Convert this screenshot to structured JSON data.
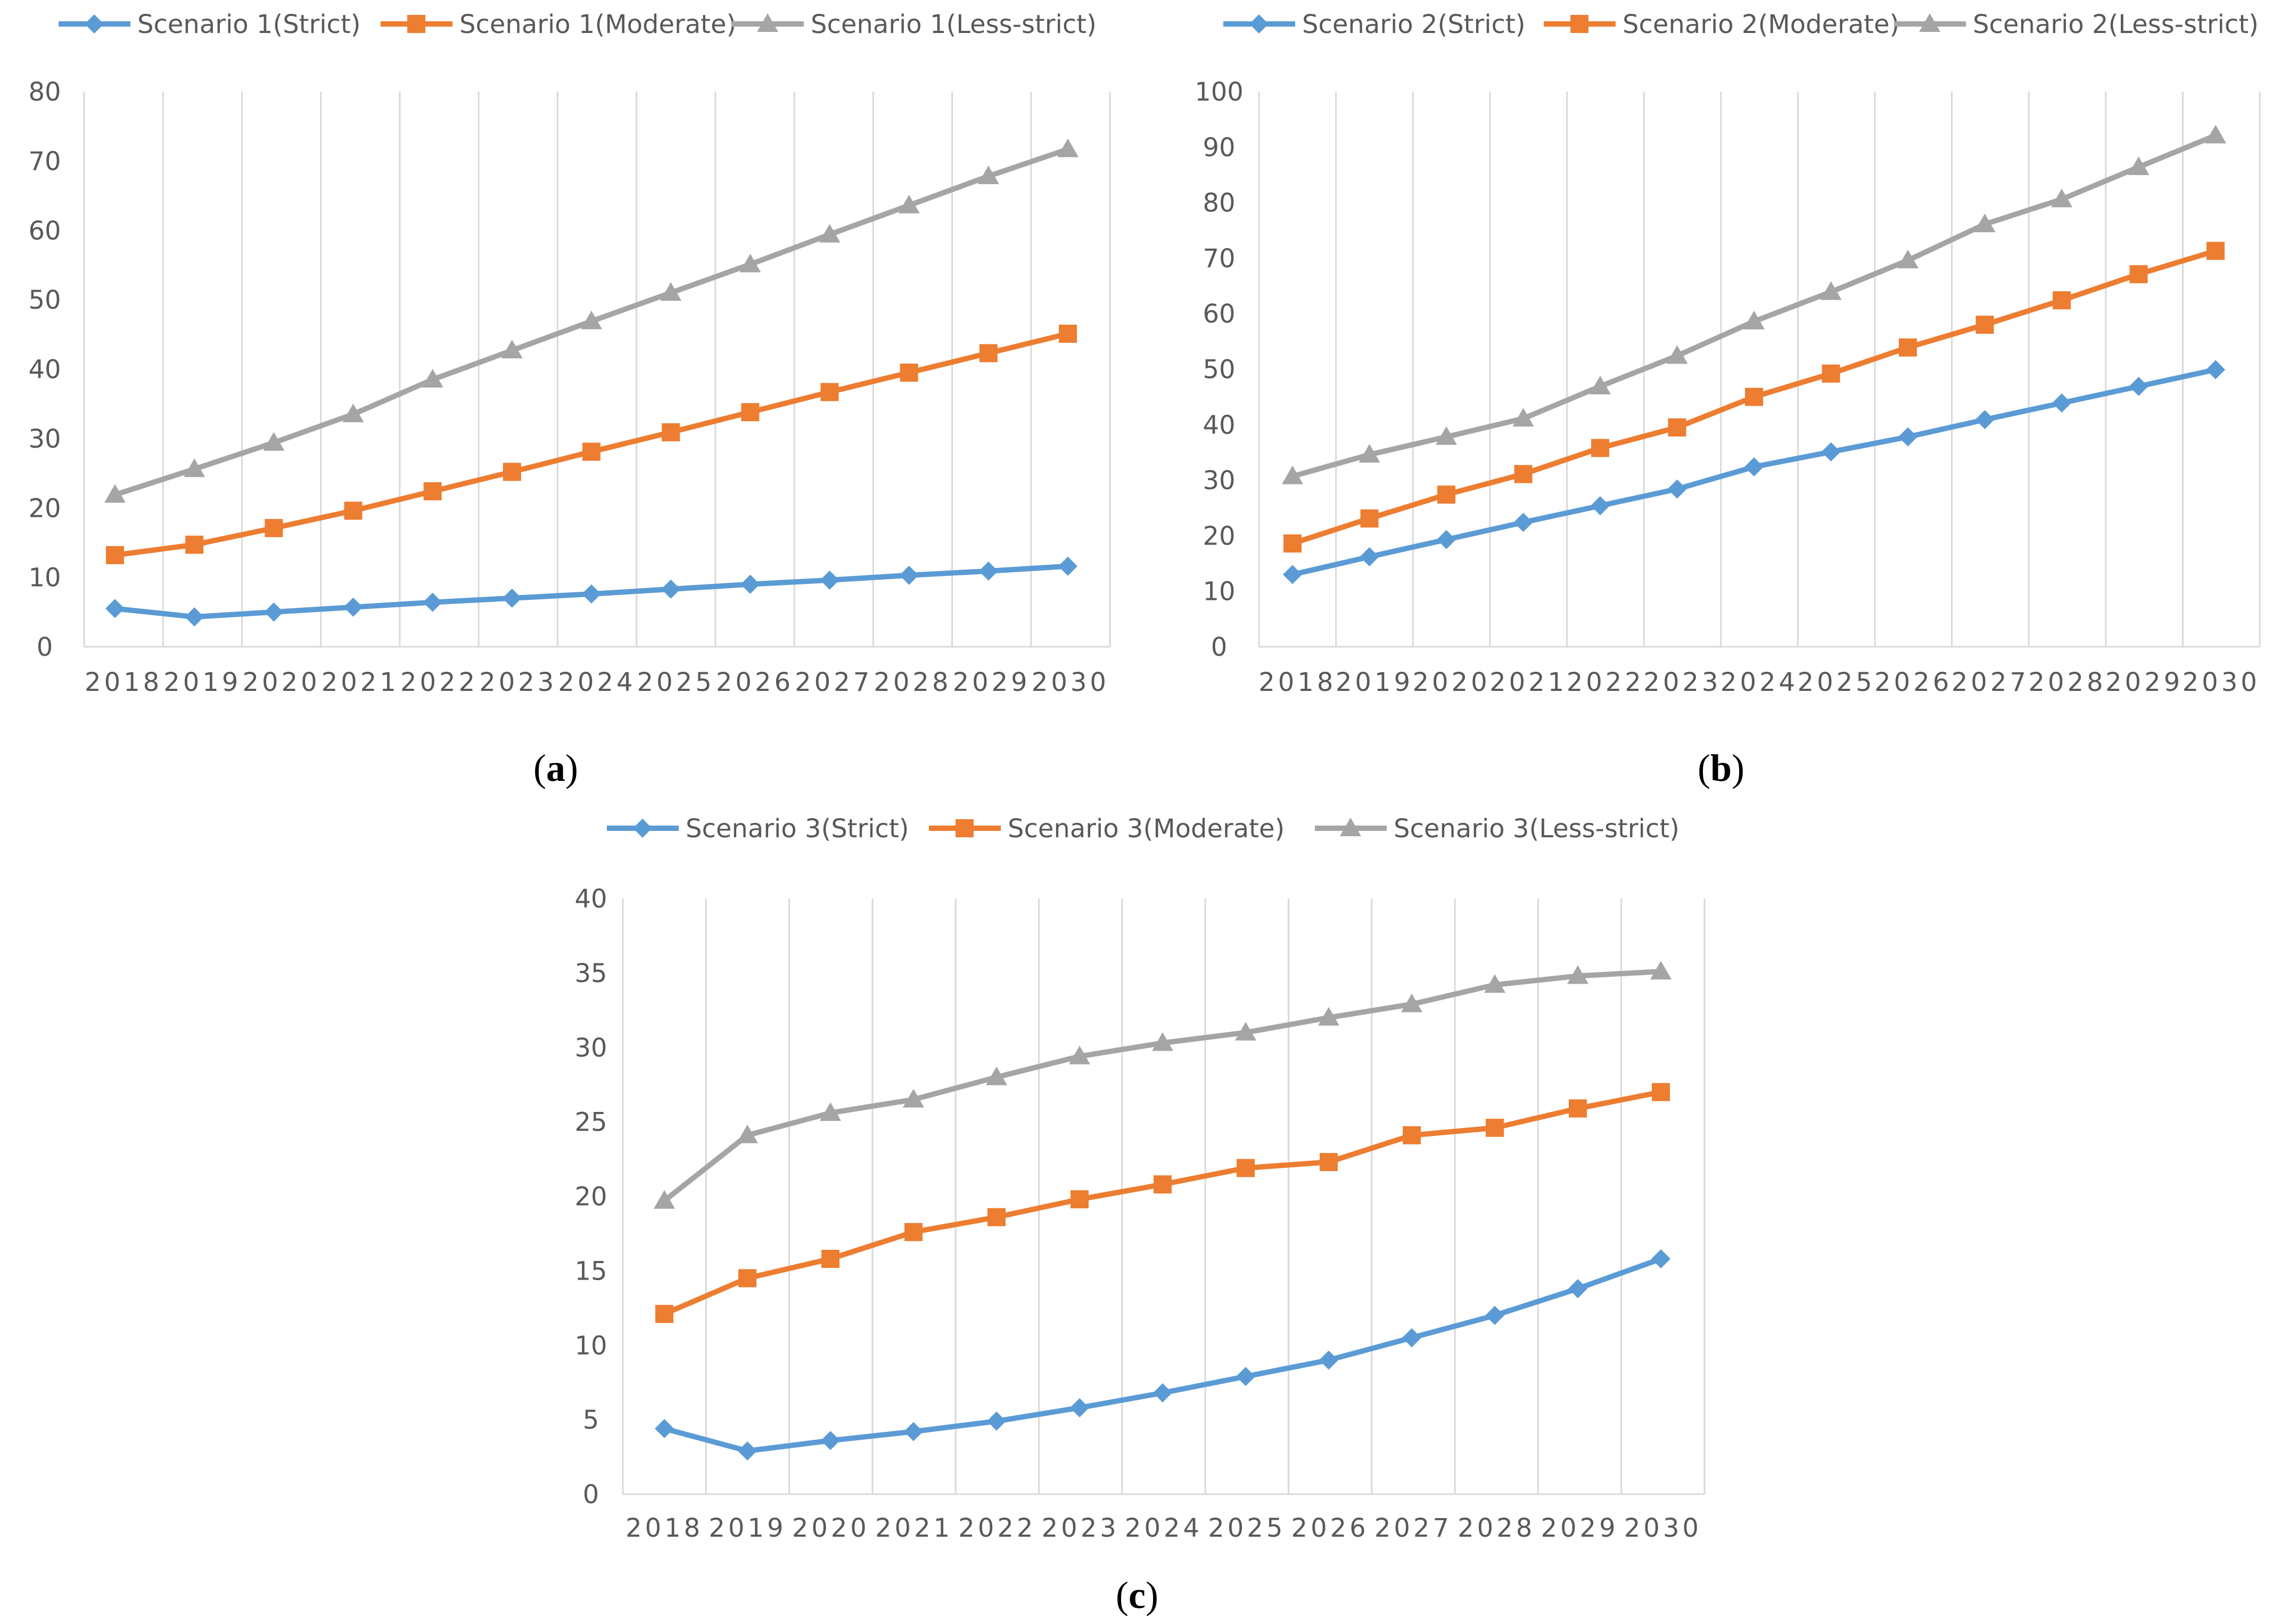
{
  "chart_data": [
    {
      "type": "line",
      "caption": "a",
      "categories": [
        "2018",
        "2019",
        "2020",
        "2021",
        "2022",
        "2023",
        "2024",
        "2025",
        "2026",
        "2027",
        "2028",
        "2029",
        "2030"
      ],
      "ylim": [
        0,
        80
      ],
      "yticks": [
        0,
        10,
        20,
        30,
        40,
        50,
        60,
        70,
        80
      ],
      "grid": "vertical",
      "legend": "top",
      "series": [
        {
          "name": "Scenario 1(Strict)",
          "color": "#5B9BD5",
          "marker": "diamond",
          "values": [
            5.5,
            4.3,
            5.0,
            5.7,
            6.4,
            7.0,
            7.6,
            8.3,
            9.0,
            9.6,
            10.3,
            10.9,
            11.6
          ]
        },
        {
          "name": "Scenario 1(Moderate)",
          "color": "#ED7D31",
          "marker": "square",
          "values": [
            13.2,
            14.7,
            17.1,
            19.6,
            22.4,
            25.2,
            28.1,
            30.9,
            33.8,
            36.7,
            39.5,
            42.3,
            45.1
          ]
        },
        {
          "name": "Scenario 1(Less-strict)",
          "color": "#A5A5A5",
          "marker": "triangle",
          "values": [
            21.9,
            25.6,
            29.4,
            33.5,
            38.5,
            42.7,
            46.9,
            51.0,
            55.1,
            59.4,
            63.6,
            67.8,
            71.7
          ]
        }
      ]
    },
    {
      "type": "line",
      "caption": "b",
      "categories": [
        "2018",
        "2019",
        "2020",
        "2021",
        "2022",
        "2023",
        "2024",
        "2025",
        "2026",
        "2027",
        "2028",
        "2029",
        "2030"
      ],
      "ylim": [
        0,
        100
      ],
      "yticks": [
        0,
        10,
        20,
        30,
        40,
        50,
        60,
        70,
        80,
        90,
        100
      ],
      "grid": "vertical",
      "legend": "top",
      "series": [
        {
          "name": "Scenario 2(Strict)",
          "color": "#5B9BD5",
          "marker": "diamond",
          "values": [
            13.0,
            16.2,
            19.3,
            22.4,
            25.4,
            28.4,
            32.4,
            35.1,
            37.8,
            40.9,
            43.9,
            46.9,
            49.9
          ]
        },
        {
          "name": "Scenario 2(Moderate)",
          "color": "#ED7D31",
          "marker": "square",
          "values": [
            18.6,
            23.1,
            27.4,
            31.1,
            35.8,
            39.5,
            45.0,
            49.2,
            53.9,
            58.0,
            62.4,
            67.1,
            71.3
          ]
        },
        {
          "name": "Scenario 2(Less-strict)",
          "color": "#A5A5A5",
          "marker": "triangle",
          "values": [
            30.7,
            34.6,
            37.8,
            41.1,
            46.9,
            52.4,
            58.6,
            63.9,
            69.6,
            76.1,
            80.6,
            86.4,
            92.1
          ]
        }
      ]
    },
    {
      "type": "line",
      "caption": "c",
      "categories": [
        "2018",
        "2019",
        "2020",
        "2021",
        "2022",
        "2023",
        "2024",
        "2025",
        "2026",
        "2027",
        "2028",
        "2029",
        "2030"
      ],
      "ylim": [
        0,
        40
      ],
      "yticks": [
        0,
        5,
        10,
        15,
        20,
        25,
        30,
        35,
        40
      ],
      "grid": "vertical",
      "legend": "top",
      "series": [
        {
          "name": "Scenario 3(Strict)",
          "color": "#5B9BD5",
          "marker": "diamond",
          "values": [
            4.4,
            2.9,
            3.6,
            4.2,
            4.9,
            5.8,
            6.8,
            7.9,
            9.0,
            10.5,
            12.0,
            13.8,
            15.8
          ]
        },
        {
          "name": "Scenario 3(Moderate)",
          "color": "#ED7D31",
          "marker": "square",
          "values": [
            12.1,
            14.5,
            15.8,
            17.6,
            18.6,
            19.8,
            20.8,
            21.9,
            22.3,
            24.1,
            24.6,
            25.9,
            27.0
          ]
        },
        {
          "name": "Scenario 3(Less-strict)",
          "color": "#A5A5A5",
          "marker": "triangle",
          "values": [
            19.7,
            24.1,
            25.6,
            26.5,
            28.0,
            29.4,
            30.3,
            31.0,
            32.0,
            32.9,
            34.2,
            34.8,
            35.1
          ]
        }
      ]
    }
  ]
}
